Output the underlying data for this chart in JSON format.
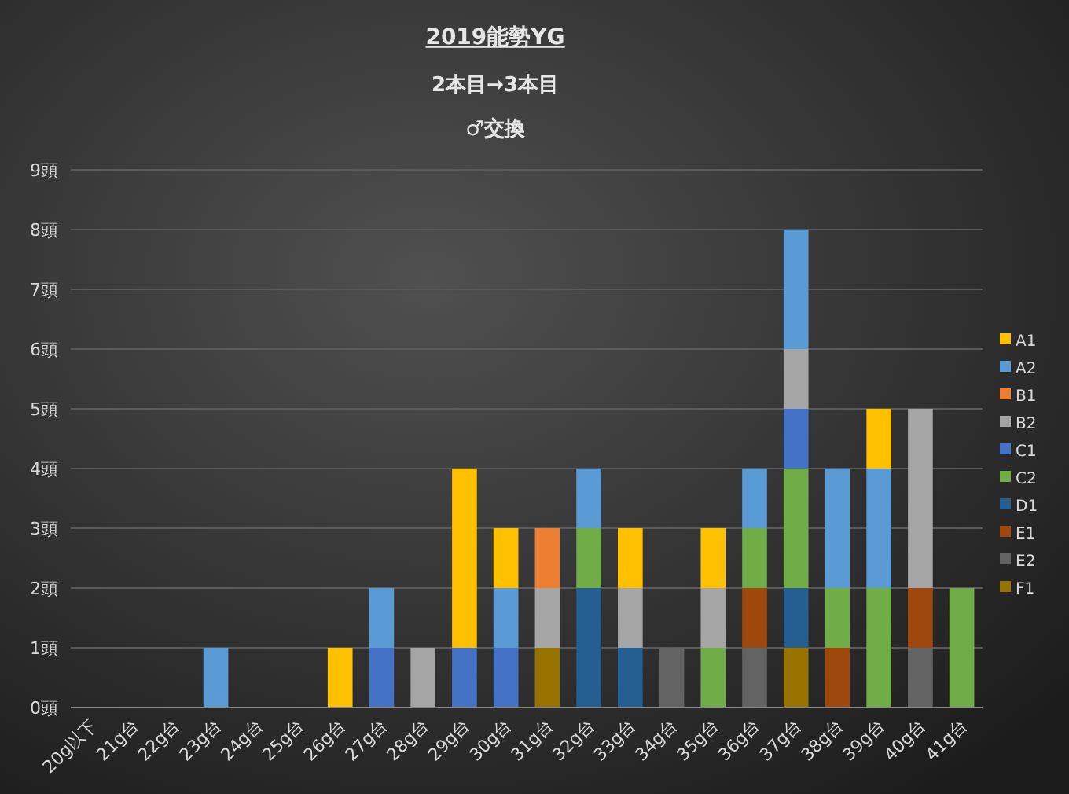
{
  "chart_data": {
    "type": "bar",
    "stacked": true,
    "title": "2019能勢YG",
    "subtitle": "2本目→3本目",
    "annotations": [
      "♂交換"
    ],
    "categories": [
      "20g以下",
      "21g台",
      "22g台",
      "23g台",
      "24g台",
      "25g台",
      "26g台",
      "27g台",
      "28g台",
      "29g台",
      "30g台",
      "31g台",
      "32g台",
      "33g台",
      "34g台",
      "35g台",
      "36g台",
      "37g台",
      "38g台",
      "39g台",
      "40g台",
      "41g台"
    ],
    "series": [
      {
        "name": "F1",
        "color": "#997300",
        "values": [
          0,
          0,
          0,
          0,
          0,
          0,
          0,
          0,
          0,
          0,
          0,
          1,
          0,
          0,
          0,
          0,
          0,
          1,
          0,
          0,
          0,
          0
        ]
      },
      {
        "name": "E2",
        "color": "#636363",
        "values": [
          0,
          0,
          0,
          0,
          0,
          0,
          0,
          0,
          0,
          0,
          0,
          0,
          0,
          0,
          1,
          0,
          1,
          0,
          0,
          0,
          1,
          0
        ]
      },
      {
        "name": "E1",
        "color": "#9e480e",
        "values": [
          0,
          0,
          0,
          0,
          0,
          0,
          0,
          0,
          0,
          0,
          0,
          0,
          0,
          0,
          0,
          0,
          1,
          0,
          1,
          0,
          1,
          0
        ]
      },
      {
        "name": "D1",
        "color": "#255e91",
        "values": [
          0,
          0,
          0,
          0,
          0,
          0,
          0,
          0,
          0,
          0,
          0,
          0,
          2,
          1,
          0,
          0,
          0,
          1,
          0,
          0,
          0,
          0
        ]
      },
      {
        "name": "C2",
        "color": "#70ad47",
        "values": [
          0,
          0,
          0,
          0,
          0,
          0,
          0,
          0,
          0,
          0,
          0,
          0,
          1,
          0,
          0,
          1,
          1,
          2,
          1,
          2,
          0,
          2
        ]
      },
      {
        "name": "C1",
        "color": "#4472c4",
        "values": [
          0,
          0,
          0,
          0,
          0,
          0,
          0,
          1,
          0,
          1,
          1,
          0,
          0,
          0,
          0,
          0,
          0,
          1,
          0,
          0,
          0,
          0
        ]
      },
      {
        "name": "B2",
        "color": "#a5a5a5",
        "values": [
          0,
          0,
          0,
          0,
          0,
          0,
          0,
          0,
          1,
          0,
          0,
          1,
          0,
          1,
          0,
          1,
          0,
          1,
          0,
          0,
          3,
          0
        ]
      },
      {
        "name": "B1",
        "color": "#ed7d31",
        "values": [
          0,
          0,
          0,
          0,
          0,
          0,
          0,
          0,
          0,
          0,
          0,
          1,
          0,
          0,
          0,
          0,
          0,
          0,
          0,
          0,
          0,
          0
        ]
      },
      {
        "name": "A2",
        "color": "#5b9bd5",
        "values": [
          0,
          0,
          0,
          1,
          0,
          0,
          0,
          1,
          0,
          0,
          1,
          0,
          1,
          0,
          0,
          0,
          1,
          2,
          2,
          2,
          0,
          0
        ]
      },
      {
        "name": "A1",
        "color": "#ffc000",
        "values": [
          0,
          0,
          0,
          0,
          0,
          0,
          1,
          0,
          0,
          3,
          1,
          0,
          0,
          1,
          0,
          1,
          0,
          0,
          0,
          1,
          0,
          0
        ]
      }
    ],
    "ylim": [
      0,
      9
    ],
    "yticks": [
      {
        "value": 0,
        "label": "0頭"
      },
      {
        "value": 1,
        "label": "1頭"
      },
      {
        "value": 2,
        "label": "2頭"
      },
      {
        "value": 3,
        "label": "3頭"
      },
      {
        "value": 4,
        "label": "4頭"
      },
      {
        "value": 5,
        "label": "5頭"
      },
      {
        "value": 6,
        "label": "6頭"
      },
      {
        "value": 7,
        "label": "7頭"
      },
      {
        "value": 8,
        "label": "8頭"
      },
      {
        "value": 9,
        "label": "9頭"
      }
    ],
    "grid": "y",
    "legend": "right"
  }
}
